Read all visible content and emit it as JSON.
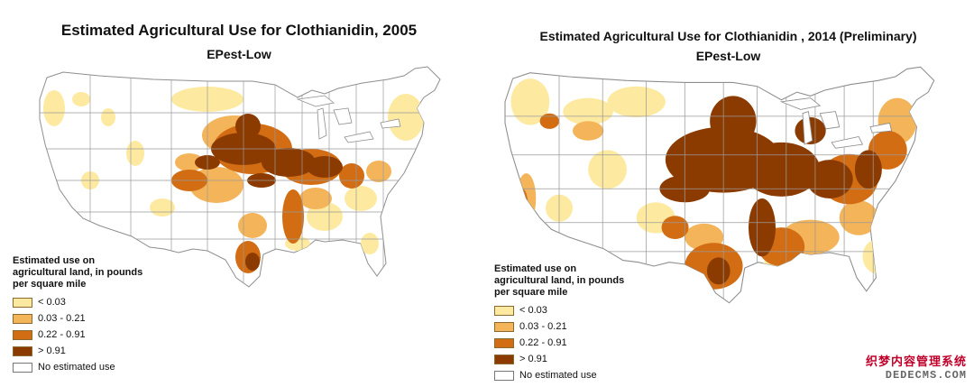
{
  "colors": {
    "lt_0_03": "#fdeaa0",
    "c_0_03_0_21": "#f3b45a",
    "c_0_22_0_91": "#d26d14",
    "gt_0_91": "#8c3b00",
    "none": "#ffffff",
    "boundary": "#9a9a9a"
  },
  "maps": [
    {
      "title": "Estimated Agricultural Use for Clothianidin, 2005",
      "subtitle": "EPest-Low",
      "legend": {
        "title": "Estimated use on agricultural land, in pounds per square mile",
        "items": [
          {
            "label": "< 0.03",
            "color": "#fdeaa0"
          },
          {
            "label": "0.03 - 0.21",
            "color": "#f3b45a"
          },
          {
            "label": "0.22 - 0.91",
            "color": "#d26d14"
          },
          {
            "label": "> 0.91",
            "color": "#8c3b00"
          },
          {
            "label": "No estimated use",
            "color": "#ffffff"
          }
        ]
      }
    },
    {
      "title": "Estimated Agricultural Use for Clothianidin , 2014 (Preliminary)",
      "subtitle": "EPest-Low",
      "legend": {
        "title": "Estimated use on agricultural land, in pounds per square mile",
        "items": [
          {
            "label": "< 0.03",
            "color": "#fdeaa0"
          },
          {
            "label": "0.03 - 0.21",
            "color": "#f3b45a"
          },
          {
            "label": "0.22 - 0.91",
            "color": "#d26d14"
          },
          {
            "label": "> 0.91",
            "color": "#8c3b00"
          },
          {
            "label": "No estimated use",
            "color": "#ffffff"
          }
        ]
      }
    }
  ],
  "watermark": {
    "line1": "织梦内容管理系统",
    "line2": "DEDECMS.COM"
  }
}
